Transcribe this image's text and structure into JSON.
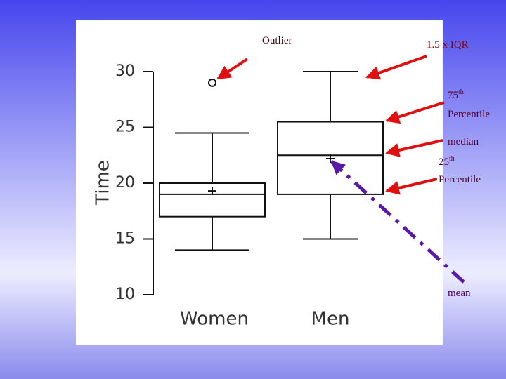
{
  "chart_data": {
    "type": "box",
    "y_label": "Time",
    "ylim": [
      10,
      30
    ],
    "yticks": [
      10,
      15,
      20,
      25,
      30
    ],
    "categories": [
      "Women",
      "Men"
    ],
    "boxes": [
      {
        "whisker_low": 14,
        "q1": 17,
        "median": 19,
        "q3": 20,
        "whisker_high": 24.5,
        "mean": 19.3,
        "outliers": [
          29
        ]
      },
      {
        "whisker_low": 15,
        "q1": 19,
        "median": 22.5,
        "q3": 25.5,
        "whisker_high": 30,
        "mean": 22.2,
        "outliers": []
      }
    ],
    "annotations": {
      "outlier": "Outlier",
      "iqr": "1.5 x IQR",
      "q3": {
        "number": "75",
        "suffix": "th",
        "word": "Percentile"
      },
      "median": "median",
      "q1": {
        "number": "25",
        "suffix": "th",
        "word": "Percentile"
      },
      "mean": "mean"
    }
  }
}
